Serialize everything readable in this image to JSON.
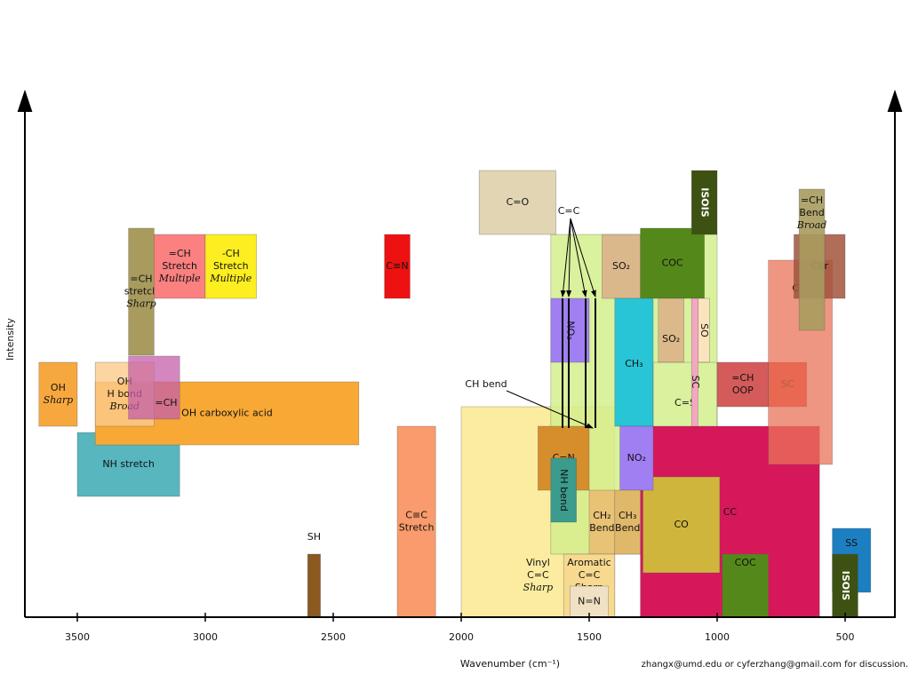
{
  "chart_data": {
    "type": "range",
    "x_label": "Wavenumber (cm⁻¹)",
    "y_label": "Intensity",
    "note": "zhangx@umd.edu or cyferzhang@gmail.com for discussion.",
    "xlim": [
      3700,
      300
    ],
    "xticks": [
      3500,
      3000,
      2500,
      2000,
      1500,
      1000,
      500
    ],
    "annotations": [
      "CH bend"
    ],
    "boxes": [
      {
        "label": [
          "Vinyl",
          "C=C",
          "Sharp"
        ],
        "range": [
          2000,
          1400
        ],
        "color": "#fbeca0"
      },
      {
        "label": [
          "C=C"
        ],
        "range": [
          1650,
          1000
        ],
        "color": "#d4ef8c"
      },
      {
        "label": [
          "OH",
          "Sharp"
        ],
        "range": [
          3650,
          3500
        ],
        "color": "#f6a83e"
      },
      {
        "label": [
          "NH stretch"
        ],
        "range": [
          3500,
          3100
        ],
        "color": "#3aa9b3"
      },
      {
        "label": [
          "OH carboxylic acid"
        ],
        "range": [
          3430,
          2400
        ],
        "color": "#f8a935"
      },
      {
        "label": [
          "OH",
          "H bond",
          "Broad"
        ],
        "range": [
          3430,
          3200
        ],
        "color": "#fcca8c"
      },
      {
        "label": [
          "=CH"
        ],
        "range": [
          3300,
          3100
        ],
        "color": "#c45fa8"
      },
      {
        "label": [
          "=CH",
          "stretch",
          "Sharp"
        ],
        "range": [
          3300,
          3200
        ],
        "color": "#a99b5e"
      },
      {
        "label": [
          "=CH",
          "Stretch",
          "Multiple"
        ],
        "range": [
          3200,
          3000
        ],
        "color": "#fb8080"
      },
      {
        "label": [
          "-CH",
          "Stretch",
          "Multiple"
        ],
        "range": [
          3000,
          2800
        ],
        "color": "#fcee21"
      },
      {
        "label": [
          "C≡N"
        ],
        "range": [
          2300,
          2200
        ],
        "color": "#ee1111"
      },
      {
        "label": [
          "SH"
        ],
        "range": [
          2600,
          2550
        ],
        "color": "#8a5a20"
      },
      {
        "label": [
          "C≡C",
          "Stretch"
        ],
        "range": [
          2250,
          2100
        ],
        "color": "#f99b6c"
      },
      {
        "label": [
          "C=O"
        ],
        "range": [
          1930,
          1630
        ],
        "color": "#e1d5b3"
      },
      {
        "label": [
          "SO₂"
        ],
        "range": [
          1450,
          1300
        ],
        "color": "#dbb88c"
      },
      {
        "label": [
          "COC"
        ],
        "range": [
          1300,
          1050
        ],
        "color": "#55881a"
      },
      {
        "label": [
          "ISOIS"
        ],
        "range": [
          1100,
          1000
        ],
        "color": "#3d5212"
      },
      {
        "label": [
          "NO₂"
        ],
        "range": [
          1650,
          1500
        ],
        "color": "#a07ff2"
      },
      {
        "label": [
          "CH₃"
        ],
        "range": [
          1400,
          1250
        ],
        "color": "#27c5d6"
      },
      {
        "label": [
          "SO₂"
        ],
        "range": [
          1230,
          1130
        ],
        "color": "#dcb98b"
      },
      {
        "label": [
          "SO"
        ],
        "range": [
          1075,
          1030
        ],
        "color": "#fae3bd"
      },
      {
        "label": [
          "C=S"
        ],
        "range": [
          1250,
          1000
        ],
        "color": "#d4ef8c"
      },
      {
        "label": [
          "SC"
        ],
        "range": [
          1100,
          1075
        ],
        "color": "#f5a6c2"
      },
      {
        "label": [
          "CC"
        ],
        "range": [
          1300,
          600
        ],
        "color": "#d6185b"
      },
      {
        "label": [
          "CO"
        ],
        "range": [
          1290,
          990
        ],
        "color": "#cfc63a"
      },
      {
        "label": [
          "C=N"
        ],
        "range": [
          1700,
          1500
        ],
        "color": "#d68e2c"
      },
      {
        "label": [
          "NH bend"
        ],
        "range": [
          1650,
          1550
        ],
        "color": "#3b9b8c"
      },
      {
        "label": [
          "NO₂"
        ],
        "range": [
          1380,
          1250
        ],
        "color": "#a07ff2"
      },
      {
        "label": [
          "CH₂",
          "Bend"
        ],
        "range": [
          1500,
          1400
        ],
        "color": "#e8c275"
      },
      {
        "label": [
          "CH₃",
          "Bend"
        ],
        "range": [
          1400,
          1300
        ],
        "color": "#e0b86a"
      },
      {
        "label": [
          "Aromatic",
          "C=C",
          "Sharp"
        ],
        "range": [
          1600,
          1400
        ],
        "color": "#f6d68c"
      },
      {
        "label": [
          "N=N"
        ],
        "range": [
          1575,
          1425
        ],
        "color": "#f1e1c4"
      },
      {
        "label": [
          "=CH",
          "OOP"
        ],
        "range": [
          1000,
          800
        ],
        "color": "#d55b5b"
      },
      {
        "label": [
          "SC"
        ],
        "range": [
          800,
          650
        ],
        "color": "#e2483a"
      },
      {
        "label": [
          "CCl"
        ],
        "range": [
          800,
          550
        ],
        "color": "#e9735a"
      },
      {
        "label": [
          "CBr"
        ],
        "range": [
          700,
          500
        ],
        "color": "#a2533b"
      },
      {
        "label": [
          "=CH",
          "Bend",
          "Broad"
        ],
        "range": [
          680,
          580
        ],
        "color": "#a99b5e"
      },
      {
        "label": [
          "COC"
        ],
        "range": [
          980,
          800
        ],
        "color": "#55881a"
      },
      {
        "label": [
          "SS"
        ],
        "range": [
          550,
          400
        ],
        "color": "#1b7fc2"
      },
      {
        "label": [
          "ISOIS"
        ],
        "range": [
          550,
          450
        ],
        "color": "#3d5212"
      }
    ]
  }
}
